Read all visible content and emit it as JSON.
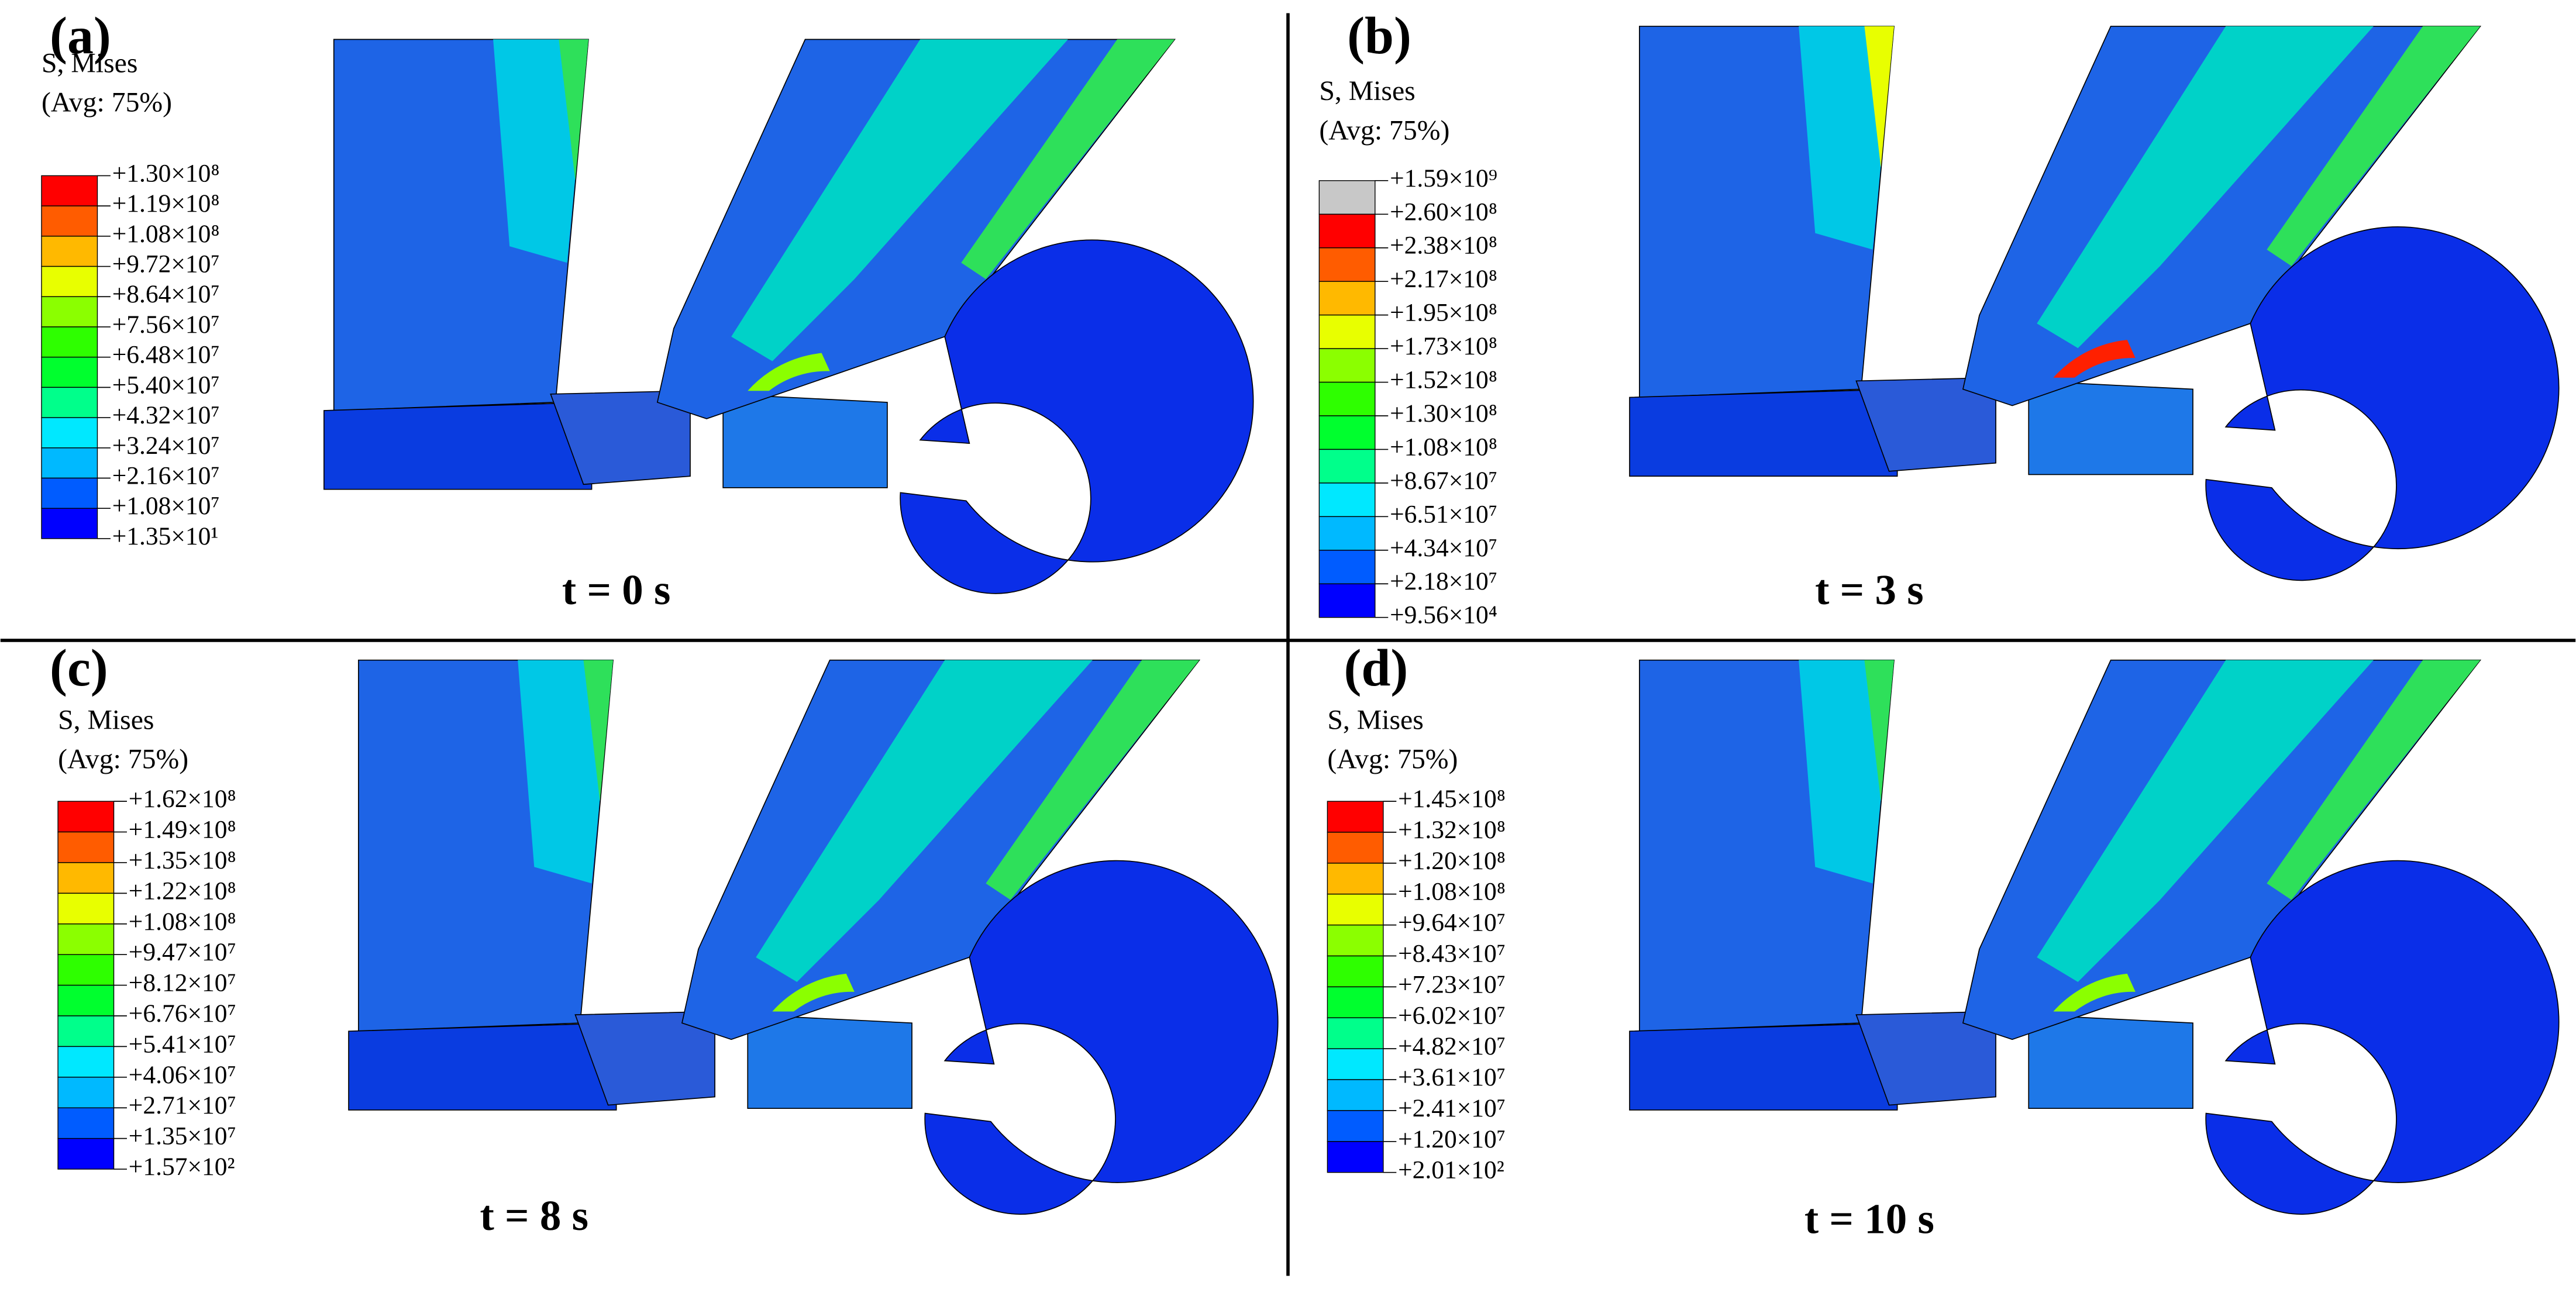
{
  "panels": [
    {
      "label": "(a)",
      "legend_title": [
        "S, Mises",
        "(Avg: 75%)"
      ],
      "legend": [
        "+1.30×10⁸",
        "+1.19×10⁸",
        "+1.08×10⁸",
        "+9.72×10⁷",
        "+8.64×10⁷",
        "+7.56×10⁷",
        "+6.48×10⁷",
        "+5.40×10⁷",
        "+4.32×10⁷",
        "+3.24×10⁷",
        "+2.16×10⁷",
        "+1.08×10⁷",
        "+1.35×10¹"
      ],
      "time": "t = 0 s"
    },
    {
      "label": "(b)",
      "legend_title": [
        "S, Mises",
        "(Avg: 75%)"
      ],
      "legend": [
        "+1.59×10⁹",
        "+2.60×10⁸",
        "+2.38×10⁸",
        "+2.17×10⁸",
        "+1.95×10⁸",
        "+1.73×10⁸",
        "+1.52×10⁸",
        "+1.30×10⁸",
        "+1.08×10⁸",
        "+8.67×10⁷",
        "+6.51×10⁷",
        "+4.34×10⁷",
        "+2.18×10⁷",
        "+9.56×10⁴"
      ],
      "time": "t = 3 s"
    },
    {
      "label": "(c)",
      "legend_title": [
        "S, Mises",
        "(Avg: 75%)"
      ],
      "legend": [
        "+1.62×10⁸",
        "+1.49×10⁸",
        "+1.35×10⁸",
        "+1.22×10⁸",
        "+1.08×10⁸",
        "+9.47×10⁷",
        "+8.12×10⁷",
        "+6.76×10⁷",
        "+5.41×10⁷",
        "+4.06×10⁷",
        "+2.71×10⁷",
        "+1.35×10⁷",
        "+1.57×10²"
      ],
      "time": "t = 8 s"
    },
    {
      "label": "(d)",
      "legend_title": [
        "S, Mises",
        "(Avg: 75%)"
      ],
      "legend": [
        "+1.45×10⁸",
        "+1.32×10⁸",
        "+1.20×10⁸",
        "+1.08×10⁸",
        "+9.64×10⁷",
        "+8.43×10⁷",
        "+7.23×10⁷",
        "+6.02×10⁷",
        "+4.82×10⁷",
        "+3.61×10⁷",
        "+2.41×10⁷",
        "+1.20×10⁷",
        "+2.01×10²"
      ],
      "time": "t = 10 s"
    }
  ]
}
